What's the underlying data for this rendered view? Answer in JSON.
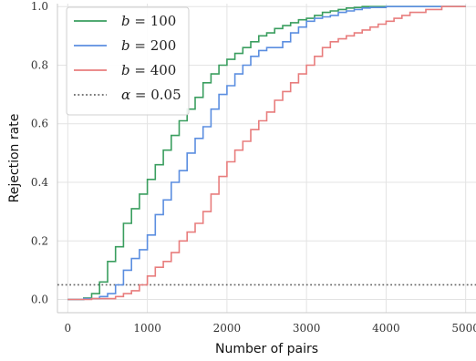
{
  "chart_data": {
    "type": "line",
    "title": "",
    "xlabel": "Number of pairs",
    "ylabel": "Rejection rate",
    "xlim": [
      -130,
      5130
    ],
    "ylim": [
      -0.045,
      1.01
    ],
    "grid": true,
    "legend_position": "top-left",
    "x_ticks": [
      {
        "value": 0,
        "label": "0"
      },
      {
        "value": 1000,
        "label": "1000"
      },
      {
        "value": 2000,
        "label": "2000"
      },
      {
        "value": 3000,
        "label": "3000"
      },
      {
        "value": 4000,
        "label": "4000"
      },
      {
        "value": 5000,
        "label": "5000"
      }
    ],
    "y_ticks": [
      {
        "value": 0.0,
        "label": "0.0"
      },
      {
        "value": 0.2,
        "label": "0.2"
      },
      {
        "value": 0.4,
        "label": "0.4"
      },
      {
        "value": 0.6,
        "label": "0.6"
      },
      {
        "value": 0.8,
        "label": "0.8"
      },
      {
        "value": 1.0,
        "label": "1.0"
      }
    ],
    "series": [
      {
        "name": "b = 100",
        "color": "#3a9e5f",
        "x": [
          0,
          200,
          300,
          400,
          500,
          600,
          700,
          800,
          900,
          1000,
          1100,
          1200,
          1300,
          1400,
          1500,
          1600,
          1700,
          1800,
          1900,
          2000,
          2100,
          2200,
          2300,
          2400,
          2500,
          2600,
          2700,
          2800,
          2900,
          3000,
          3100,
          3200,
          3300,
          3400,
          3500,
          3600,
          3700,
          3800,
          4000,
          4300,
          4600,
          5000
        ],
        "y": [
          0.0,
          0.005,
          0.02,
          0.06,
          0.13,
          0.18,
          0.26,
          0.31,
          0.36,
          0.41,
          0.46,
          0.51,
          0.56,
          0.61,
          0.65,
          0.69,
          0.74,
          0.77,
          0.8,
          0.82,
          0.84,
          0.86,
          0.88,
          0.9,
          0.91,
          0.925,
          0.935,
          0.945,
          0.955,
          0.96,
          0.97,
          0.98,
          0.985,
          0.99,
          0.995,
          0.997,
          1.0,
          1.0,
          1.0,
          1.0,
          1.0,
          1.0
        ]
      },
      {
        "name": "b = 200",
        "color": "#5b8ee0",
        "x": [
          0,
          200,
          400,
          500,
          600,
          700,
          800,
          900,
          1000,
          1100,
          1200,
          1300,
          1400,
          1500,
          1600,
          1700,
          1800,
          1900,
          2000,
          2100,
          2200,
          2300,
          2400,
          2500,
          2600,
          2700,
          2800,
          2900,
          3000,
          3100,
          3200,
          3300,
          3400,
          3500,
          3600,
          3700,
          3800,
          4000,
          4300,
          4600,
          5000
        ],
        "y": [
          0.0,
          0.003,
          0.01,
          0.02,
          0.05,
          0.1,
          0.14,
          0.17,
          0.22,
          0.29,
          0.34,
          0.4,
          0.44,
          0.5,
          0.55,
          0.59,
          0.65,
          0.7,
          0.73,
          0.77,
          0.8,
          0.83,
          0.85,
          0.86,
          0.86,
          0.88,
          0.91,
          0.93,
          0.95,
          0.96,
          0.965,
          0.97,
          0.98,
          0.985,
          0.99,
          0.995,
          0.997,
          1.0,
          1.0,
          1.0,
          1.0
        ]
      },
      {
        "name": "b = 400",
        "color": "#e87d7d",
        "x": [
          0,
          300,
          600,
          700,
          800,
          900,
          1000,
          1100,
          1200,
          1300,
          1400,
          1500,
          1600,
          1700,
          1800,
          1900,
          2000,
          2100,
          2200,
          2300,
          2400,
          2500,
          2600,
          2700,
          2800,
          2900,
          3000,
          3100,
          3200,
          3300,
          3400,
          3500,
          3600,
          3700,
          3800,
          3900,
          4000,
          4100,
          4200,
          4300,
          4500,
          4700,
          5000
        ],
        "y": [
          0.0,
          0.003,
          0.01,
          0.02,
          0.03,
          0.05,
          0.08,
          0.11,
          0.13,
          0.16,
          0.2,
          0.23,
          0.26,
          0.3,
          0.36,
          0.42,
          0.47,
          0.51,
          0.54,
          0.58,
          0.61,
          0.64,
          0.68,
          0.71,
          0.74,
          0.77,
          0.8,
          0.83,
          0.86,
          0.88,
          0.89,
          0.9,
          0.91,
          0.92,
          0.93,
          0.94,
          0.95,
          0.96,
          0.97,
          0.98,
          0.99,
          1.0,
          1.0
        ]
      }
    ],
    "reference_line": {
      "name": "α = 0.05",
      "y": 0.05,
      "color": "#666666",
      "style": "dotted"
    },
    "legend": [
      {
        "symbol": "b",
        "value": "100",
        "color": "#3a9e5f",
        "style": "solid"
      },
      {
        "symbol": "b",
        "value": "200",
        "color": "#5b8ee0",
        "style": "solid"
      },
      {
        "symbol": "b",
        "value": "400",
        "color": "#e87d7d",
        "style": "solid"
      },
      {
        "symbol": "α",
        "value": "0.05",
        "color": "#666666",
        "style": "dotted"
      }
    ]
  }
}
